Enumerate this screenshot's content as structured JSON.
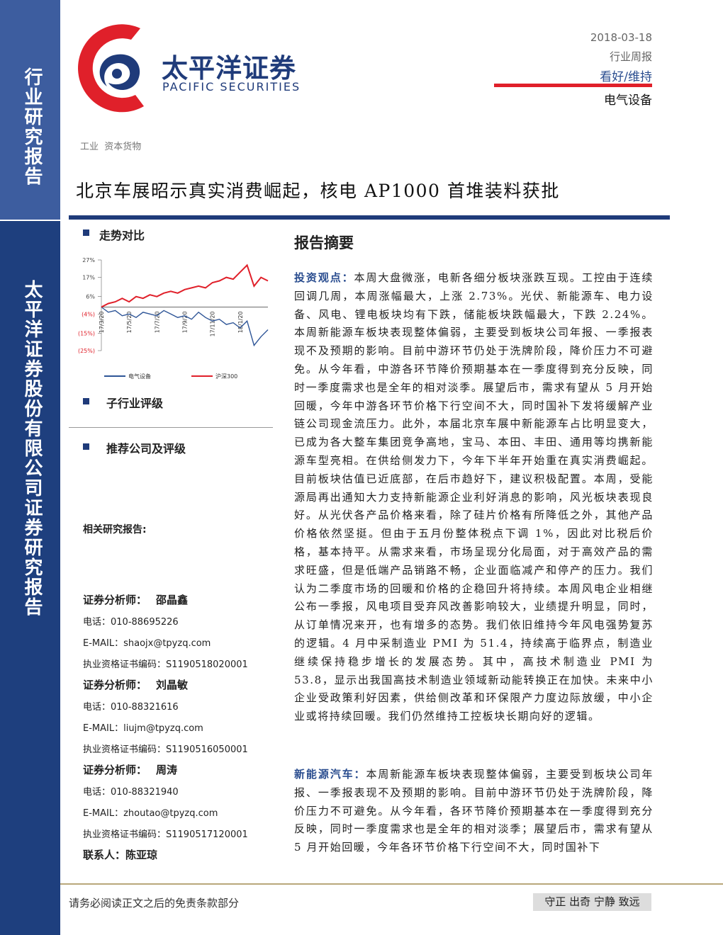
{
  "sidebar": {
    "top": "行业研究报告",
    "bottom": "太平洋证券股份有限公司证券研究报告"
  },
  "logo": {
    "name": "太平洋证券",
    "english": "PACIFIC SECURITIES"
  },
  "header": {
    "date": "2018-03-18",
    "report_type": "行业周报",
    "rating": "看好/维持",
    "sector": "电气设备"
  },
  "category": [
    "工业",
    "资本货物"
  ],
  "title": "北京车展昭示真实消费崛起，核电 AP1000 首堆装料获批",
  "left": {
    "trend_heading": "走势对比",
    "sub_rating_heading": "子行业评级",
    "recommend_heading": "推荐公司及评级",
    "related_heading": "相关研究报告:",
    "analysts": [
      {
        "role": "证券分析师：",
        "name": "邵晶鑫",
        "phone_label": "电话：",
        "phone": "010-88695226",
        "email_label": "E-MAIL：",
        "email": "shaojx@tpyzq.com",
        "cert_label": "执业资格证书编码：",
        "cert": "S1190518020001"
      },
      {
        "role": "证券分析师：",
        "name": "刘晶敏",
        "phone_label": "电话：",
        "phone": "010-88321616",
        "email_label": "E-MAIL：",
        "email": "liujm@tpyzq.com",
        "cert_label": "执业资格证书编码：",
        "cert": "S1190516050001"
      },
      {
        "role": "证券分析师：",
        "name": "周涛",
        "phone_label": "电话：",
        "phone": "010-88321940",
        "email_label": "E-MAIL：",
        "email": "zhoutao@tpyzq.com",
        "cert_label": "执业资格证书编码：",
        "cert": "S1190517120001"
      }
    ],
    "contact_label": "联系人：",
    "contact": "陈亚琼"
  },
  "chart_data": {
    "type": "line",
    "categories": [
      "17/3/20",
      null,
      null,
      null,
      "17/5/20",
      null,
      null,
      null,
      "17/7/20",
      null,
      null,
      null,
      "17/9/20",
      null,
      null,
      null,
      "17/11/20",
      null,
      null,
      null,
      "18/1/20",
      null,
      null,
      null,
      null
    ],
    "series": [
      {
        "name": "电气设备",
        "color": "#2e5597",
        "values": [
          0,
          -3,
          -2,
          -5,
          -4,
          -6,
          -3,
          -4,
          -5,
          -2,
          -4,
          -6,
          -5,
          -7,
          -3,
          -6,
          -8,
          -7,
          -10,
          -9,
          -12,
          -8,
          -22,
          -17,
          -13
        ]
      },
      {
        "name": "沪深300",
        "color": "#e0202a",
        "values": [
          0,
          2,
          3,
          5,
          3,
          6,
          5,
          7,
          6,
          8,
          9,
          8,
          10,
          11,
          12,
          11,
          14,
          15,
          17,
          16,
          20,
          24,
          12,
          17,
          15
        ]
      }
    ],
    "ylim": [
      -25,
      27
    ],
    "yticks": [
      {
        "value": 27,
        "label": "27%"
      },
      {
        "value": 17,
        "label": "17%"
      },
      {
        "value": 6,
        "label": "6%"
      },
      {
        "value": -4,
        "label": "(4%)"
      },
      {
        "value": -15,
        "label": "(15%)"
      },
      {
        "value": -25,
        "label": "(25%)"
      }
    ]
  },
  "summary": {
    "heading": "报告摘要",
    "paragraphs": [
      {
        "lead": "投资观点：",
        "text": "本周大盘微涨，电新各细分板块涨跌互现。工控由于连续回调几周，本周涨幅最大，上涨 2.73%。光伏、新能源车、电力设备、风电、锂电板块均有下跌，储能板块跌幅最大，下跌 2.24%。本周新能源车板块表现整体偏弱，主要受到板块公司年报、一季报表现不及预期的影响。目前中游环节仍处于洗牌阶段，降价压力不可避免。从今年看，中游各环节降价预期基本在一季度得到充分反映，同时一季度需求也是全年的相对淡季。展望后市，需求有望从 5 月开始回暖，今年中游各环节价格下行空间不大，同时国补下发将缓解产业链公司现金流压力。此外，本届北京车展中新能源车占比明显变大，已成为各大整车集团竞争高地，宝马、本田、丰田、通用等均携新能源车型亮相。在供给侧发力下，今年下半年开始重在真实消费崛起。目前板块估值已近底部，在后市趋好下，建议积极配置。本周，受能源局再出通知大力支持新能源企业利好消息的影响，风光板块表现良好。从光伏各产品价格来看，除了硅片价格有所降低之外，其他产品价格依然坚挺。但由于五月份整体税点下调 1%，因此对比税后价格，基本持平。从需求来看，市场呈现分化局面，对于高效产品的需求旺盛，但是低端产品销路不畅，企业面临减产和停产的压力。我们认为二季度市场的回暖和价格的企稳回升将持续。本周风电企业相继公布一季报，风电项目受弃风改善影响较大，业绩提升明显，同时，从订单情况来开，也有增多的态势。我们依旧维持今年风电强势复苏的逻辑。4 月中采制造业 PMI 为 51.4，持续高于临界点，制造业继续保持稳步增长的发展态势。其中，高技术制造业 PMI 为 53.8，显示出我国高技术制造业领域新动能转换正在加快。未来中小企业受政策利好因素，供给侧改革和环保限产力度边际放缓，中小企业或将持续回暖。我们仍然维持工控板块长期向好的逻辑。"
      },
      {
        "lead": "新能源汽车：",
        "text": "本周新能源车板块表现整体偏弱，主要受到板块公司年报、一季报表现不及预期的影响。目前中游环节仍处于洗牌阶段，降价压力不可避免。从今年看，各环节降价预期基本在一季度得到充分反映，同时一季度需求也是全年的相对淡季；展望后市，需求有望从 5 月开始回暖，今年各环节价格下行空间不大，同时国补下"
      }
    ]
  },
  "footer": {
    "disclaimer": "请务必阅读正文之后的免责条款部分",
    "motto": "守正 出奇 宁静 致远"
  }
}
